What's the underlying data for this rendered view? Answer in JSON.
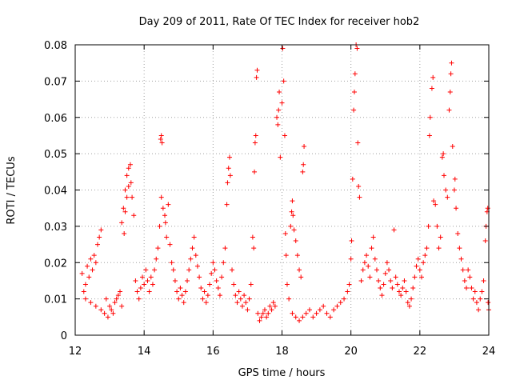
{
  "chart_data": {
    "type": "scatter",
    "title": "Day 209 of 2011, Rate Of TEC Index for receiver hob2",
    "xlabel": "GPS time / hours",
    "ylabel": "ROTI / TECUs",
    "xlim": [
      12,
      24
    ],
    "ylim": [
      0,
      0.08
    ],
    "xticks": [
      12,
      14,
      16,
      18,
      20,
      22,
      24
    ],
    "xtick_labels": [
      "12",
      "14",
      "16",
      "18",
      "20",
      "22",
      "24"
    ],
    "yticks": [
      0,
      0.01,
      0.02,
      0.03,
      0.04,
      0.05,
      0.06,
      0.07,
      0.08
    ],
    "ytick_labels": [
      "0",
      "0.01",
      "0.02",
      "0.03",
      "0.04",
      "0.05",
      "0.06",
      "0.07",
      "0.08"
    ],
    "grid": true,
    "marker": "+",
    "color": "#ff0000",
    "series": [
      {
        "name": "ROTI",
        "points": [
          [
            12.2,
            0.017
          ],
          [
            12.25,
            0.012
          ],
          [
            12.3,
            0.014
          ],
          [
            12.35,
            0.019
          ],
          [
            12.4,
            0.016
          ],
          [
            12.45,
            0.021
          ],
          [
            12.5,
            0.018
          ],
          [
            12.55,
            0.022
          ],
          [
            12.6,
            0.02
          ],
          [
            12.65,
            0.025
          ],
          [
            12.7,
            0.027
          ],
          [
            12.75,
            0.029
          ],
          [
            12.3,
            0.01
          ],
          [
            12.45,
            0.009
          ],
          [
            12.6,
            0.008
          ],
          [
            12.75,
            0.007
          ],
          [
            12.85,
            0.006
          ],
          [
            12.95,
            0.005
          ],
          [
            13.05,
            0.007
          ],
          [
            13.15,
            0.009
          ],
          [
            13.25,
            0.011
          ],
          [
            13.35,
            0.008
          ],
          [
            12.9,
            0.01
          ],
          [
            13.0,
            0.008
          ],
          [
            13.1,
            0.006
          ],
          [
            13.2,
            0.01
          ],
          [
            13.3,
            0.012
          ],
          [
            13.35,
            0.031
          ],
          [
            13.4,
            0.035
          ],
          [
            13.45,
            0.04
          ],
          [
            13.5,
            0.044
          ],
          [
            13.55,
            0.046
          ],
          [
            13.6,
            0.047
          ],
          [
            13.62,
            0.042
          ],
          [
            13.65,
            0.038
          ],
          [
            13.7,
            0.033
          ],
          [
            13.5,
            0.038
          ],
          [
            13.55,
            0.041
          ],
          [
            13.45,
            0.034
          ],
          [
            13.42,
            0.028
          ],
          [
            13.75,
            0.015
          ],
          [
            13.8,
            0.012
          ],
          [
            13.85,
            0.01
          ],
          [
            13.9,
            0.013
          ],
          [
            13.95,
            0.016
          ],
          [
            14.0,
            0.014
          ],
          [
            14.05,
            0.018
          ],
          [
            14.1,
            0.015
          ],
          [
            14.15,
            0.012
          ],
          [
            14.2,
            0.016
          ],
          [
            14.25,
            0.014
          ],
          [
            14.3,
            0.018
          ],
          [
            14.35,
            0.021
          ],
          [
            14.4,
            0.024
          ],
          [
            14.45,
            0.03
          ],
          [
            14.5,
            0.038
          ],
          [
            14.48,
            0.054
          ],
          [
            14.5,
            0.055
          ],
          [
            14.52,
            0.053
          ],
          [
            14.55,
            0.035
          ],
          [
            14.6,
            0.033
          ],
          [
            14.62,
            0.031
          ],
          [
            14.65,
            0.027
          ],
          [
            14.7,
            0.036
          ],
          [
            14.75,
            0.025
          ],
          [
            14.8,
            0.02
          ],
          [
            14.85,
            0.018
          ],
          [
            14.9,
            0.015
          ],
          [
            14.95,
            0.012
          ],
          [
            15.0,
            0.01
          ],
          [
            15.05,
            0.013
          ],
          [
            15.1,
            0.011
          ],
          [
            15.15,
            0.009
          ],
          [
            15.2,
            0.012
          ],
          [
            15.25,
            0.015
          ],
          [
            15.3,
            0.018
          ],
          [
            15.35,
            0.021
          ],
          [
            15.4,
            0.024
          ],
          [
            15.45,
            0.027
          ],
          [
            15.5,
            0.022
          ],
          [
            15.55,
            0.019
          ],
          [
            15.6,
            0.016
          ],
          [
            15.65,
            0.013
          ],
          [
            15.7,
            0.01
          ],
          [
            15.75,
            0.012
          ],
          [
            15.8,
            0.009
          ],
          [
            15.85,
            0.011
          ],
          [
            15.9,
            0.014
          ],
          [
            15.95,
            0.017
          ],
          [
            16.0,
            0.02
          ],
          [
            16.05,
            0.018
          ],
          [
            16.1,
            0.015
          ],
          [
            16.15,
            0.013
          ],
          [
            16.2,
            0.011
          ],
          [
            16.25,
            0.016
          ],
          [
            16.3,
            0.02
          ],
          [
            16.35,
            0.024
          ],
          [
            16.4,
            0.036
          ],
          [
            16.42,
            0.042
          ],
          [
            16.45,
            0.046
          ],
          [
            16.48,
            0.049
          ],
          [
            16.5,
            0.044
          ],
          [
            16.55,
            0.018
          ],
          [
            16.6,
            0.014
          ],
          [
            16.65,
            0.011
          ],
          [
            16.7,
            0.009
          ],
          [
            16.75,
            0.012
          ],
          [
            16.8,
            0.01
          ],
          [
            16.85,
            0.008
          ],
          [
            16.9,
            0.011
          ],
          [
            16.95,
            0.009
          ],
          [
            17.0,
            0.007
          ],
          [
            17.05,
            0.01
          ],
          [
            17.1,
            0.014
          ],
          [
            17.15,
            0.027
          ],
          [
            17.18,
            0.024
          ],
          [
            17.2,
            0.045
          ],
          [
            17.22,
            0.053
          ],
          [
            17.24,
            0.055
          ],
          [
            17.26,
            0.071
          ],
          [
            17.28,
            0.073
          ],
          [
            17.3,
            0.006
          ],
          [
            17.35,
            0.004
          ],
          [
            17.4,
            0.005
          ],
          [
            17.45,
            0.006
          ],
          [
            17.5,
            0.007
          ],
          [
            17.55,
            0.005
          ],
          [
            17.6,
            0.006
          ],
          [
            17.65,
            0.008
          ],
          [
            17.7,
            0.007
          ],
          [
            17.75,
            0.009
          ],
          [
            17.8,
            0.008
          ],
          [
            17.85,
            0.06
          ],
          [
            17.88,
            0.058
          ],
          [
            17.9,
            0.062
          ],
          [
            17.92,
            0.067
          ],
          [
            17.95,
            0.049
          ],
          [
            18.0,
            0.064
          ],
          [
            18.02,
            0.079
          ],
          [
            18.05,
            0.07
          ],
          [
            18.08,
            0.055
          ],
          [
            18.1,
            0.028
          ],
          [
            18.12,
            0.022
          ],
          [
            18.15,
            0.014
          ],
          [
            18.2,
            0.01
          ],
          [
            18.25,
            0.03
          ],
          [
            18.28,
            0.034
          ],
          [
            18.3,
            0.037
          ],
          [
            18.32,
            0.033
          ],
          [
            18.35,
            0.029
          ],
          [
            18.4,
            0.026
          ],
          [
            18.45,
            0.022
          ],
          [
            18.5,
            0.018
          ],
          [
            18.55,
            0.016
          ],
          [
            18.6,
            0.045
          ],
          [
            18.62,
            0.047
          ],
          [
            18.64,
            0.052
          ],
          [
            18.3,
            0.006
          ],
          [
            18.4,
            0.005
          ],
          [
            18.5,
            0.004
          ],
          [
            18.6,
            0.005
          ],
          [
            18.7,
            0.006
          ],
          [
            18.8,
            0.007
          ],
          [
            18.9,
            0.005
          ],
          [
            19.0,
            0.006
          ],
          [
            19.1,
            0.007
          ],
          [
            19.2,
            0.008
          ],
          [
            19.3,
            0.006
          ],
          [
            19.4,
            0.005
          ],
          [
            19.5,
            0.007
          ],
          [
            19.6,
            0.008
          ],
          [
            19.7,
            0.009
          ],
          [
            19.8,
            0.01
          ],
          [
            19.9,
            0.012
          ],
          [
            19.95,
            0.014
          ],
          [
            20.0,
            0.021
          ],
          [
            20.02,
            0.026
          ],
          [
            20.05,
            0.043
          ],
          [
            20.08,
            0.062
          ],
          [
            20.1,
            0.067
          ],
          [
            20.12,
            0.072
          ],
          [
            20.15,
            0.08
          ],
          [
            20.18,
            0.079
          ],
          [
            20.2,
            0.053
          ],
          [
            20.22,
            0.041
          ],
          [
            20.25,
            0.038
          ],
          [
            20.3,
            0.015
          ],
          [
            20.35,
            0.018
          ],
          [
            20.4,
            0.02
          ],
          [
            20.45,
            0.022
          ],
          [
            20.5,
            0.019
          ],
          [
            20.55,
            0.016
          ],
          [
            20.6,
            0.024
          ],
          [
            20.65,
            0.027
          ],
          [
            20.7,
            0.021
          ],
          [
            20.75,
            0.018
          ],
          [
            20.8,
            0.015
          ],
          [
            20.85,
            0.013
          ],
          [
            20.9,
            0.011
          ],
          [
            20.95,
            0.014
          ],
          [
            21.0,
            0.017
          ],
          [
            21.05,
            0.02
          ],
          [
            21.1,
            0.018
          ],
          [
            21.15,
            0.015
          ],
          [
            21.2,
            0.013
          ],
          [
            21.25,
            0.029
          ],
          [
            21.3,
            0.016
          ],
          [
            21.35,
            0.014
          ],
          [
            21.4,
            0.012
          ],
          [
            21.45,
            0.011
          ],
          [
            21.5,
            0.013
          ],
          [
            21.55,
            0.015
          ],
          [
            21.6,
            0.012
          ],
          [
            21.65,
            0.009
          ],
          [
            21.7,
            0.008
          ],
          [
            21.75,
            0.01
          ],
          [
            21.8,
            0.013
          ],
          [
            21.85,
            0.016
          ],
          [
            21.9,
            0.019
          ],
          [
            21.95,
            0.021
          ],
          [
            22.0,
            0.018
          ],
          [
            22.05,
            0.016
          ],
          [
            22.1,
            0.02
          ],
          [
            22.15,
            0.022
          ],
          [
            22.2,
            0.024
          ],
          [
            22.25,
            0.03
          ],
          [
            22.28,
            0.055
          ],
          [
            22.3,
            0.06
          ],
          [
            22.35,
            0.068
          ],
          [
            22.38,
            0.071
          ],
          [
            22.4,
            0.037
          ],
          [
            22.45,
            0.036
          ],
          [
            22.5,
            0.03
          ],
          [
            22.55,
            0.024
          ],
          [
            22.6,
            0.027
          ],
          [
            22.65,
            0.049
          ],
          [
            22.68,
            0.05
          ],
          [
            22.7,
            0.044
          ],
          [
            22.75,
            0.04
          ],
          [
            22.8,
            0.038
          ],
          [
            22.85,
            0.062
          ],
          [
            22.88,
            0.067
          ],
          [
            22.9,
            0.072
          ],
          [
            22.92,
            0.075
          ],
          [
            22.95,
            0.052
          ],
          [
            23.0,
            0.04
          ],
          [
            23.02,
            0.043
          ],
          [
            23.05,
            0.035
          ],
          [
            23.1,
            0.028
          ],
          [
            23.15,
            0.024
          ],
          [
            23.2,
            0.021
          ],
          [
            23.25,
            0.018
          ],
          [
            23.3,
            0.015
          ],
          [
            23.35,
            0.013
          ],
          [
            23.4,
            0.018
          ],
          [
            23.45,
            0.016
          ],
          [
            23.5,
            0.013
          ],
          [
            23.55,
            0.01
          ],
          [
            23.6,
            0.012
          ],
          [
            23.65,
            0.009
          ],
          [
            23.7,
            0.007
          ],
          [
            23.75,
            0.01
          ],
          [
            23.8,
            0.012
          ],
          [
            23.85,
            0.015
          ],
          [
            23.9,
            0.026
          ],
          [
            23.92,
            0.03
          ],
          [
            23.95,
            0.034
          ],
          [
            23.97,
            0.035
          ],
          [
            23.98,
            0.009
          ],
          [
            24.0,
            0.007
          ]
        ]
      }
    ]
  }
}
